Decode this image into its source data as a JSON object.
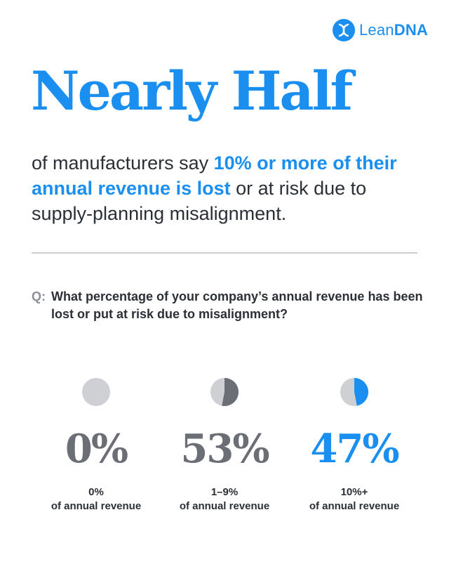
{
  "brand": {
    "name_light": "Lean",
    "name_bold": "DNA",
    "color": "#1a8ff0",
    "icon": "dna-logo-icon"
  },
  "headline": "Nearly Half",
  "subhead": {
    "pre": "of manufacturers say ",
    "highlight": "10% or more of their annual revenue is lost",
    "post": " or at risk due to supply-planning misalignment."
  },
  "question": {
    "label": "Q:",
    "text": "What percentage of your company’s annual revenue has been lost or put at risk due to misalignment?"
  },
  "colors": {
    "accent": "#1a8ff0",
    "dark_gray": "#6b6e75",
    "light_gray": "#cfd0d4"
  },
  "chart_data": {
    "type": "pie",
    "categories": [
      "0%",
      "1–9%",
      "10%+"
    ],
    "values": [
      0,
      53,
      47
    ],
    "value_labels": [
      "0%",
      "53%",
      "47%"
    ],
    "category_labels": [
      {
        "line1": "0%",
        "line2": "of annual revenue"
      },
      {
        "line1": "1–9%",
        "line2": "of annual revenue"
      },
      {
        "line1": "10%+",
        "line2": "of annual revenue"
      }
    ],
    "colors": [
      "#6b6e75",
      "#6b6e75",
      "#1a8ff0"
    ],
    "value_text_colors": [
      "#6b6e75",
      "#6b6e75",
      "#1a8ff0"
    ]
  }
}
